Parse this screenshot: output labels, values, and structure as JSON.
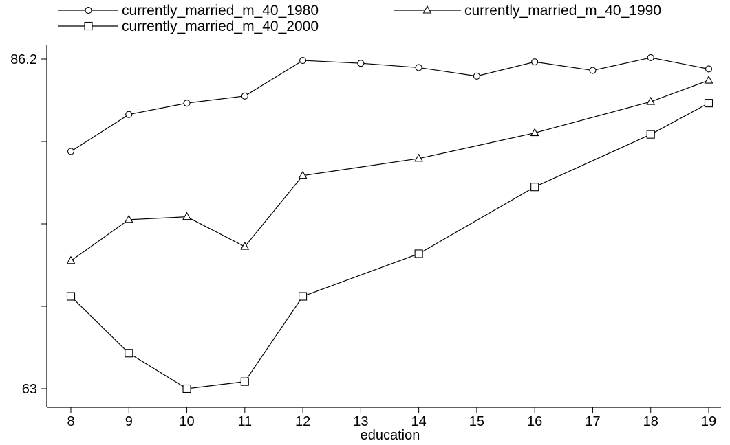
{
  "chart_data": {
    "type": "line",
    "xlabel": "education",
    "ylabel": "",
    "x": [
      8,
      9,
      10,
      11,
      12,
      13,
      14,
      15,
      16,
      17,
      18,
      19
    ],
    "xticks": [
      "8",
      "9",
      "10",
      "11",
      "12",
      "13",
      "14",
      "15",
      "16",
      "17",
      "18",
      "19"
    ],
    "yticks": [
      "63",
      "86.2"
    ],
    "ylim": [
      62.4,
      87.2
    ],
    "grid": false,
    "legend_position": "top",
    "series": [
      {
        "name": "currently_married_m_40_1980",
        "marker": "circle",
        "x": [
          8,
          9,
          10,
          11,
          12,
          13,
          14,
          15,
          16,
          17,
          18,
          19
        ],
        "values": [
          79.7,
          82.3,
          83.1,
          83.6,
          86.1,
          85.9,
          85.6,
          85.0,
          86.0,
          85.4,
          86.3,
          85.5
        ]
      },
      {
        "name": "currently_married_m_40_1990",
        "marker": "triangle",
        "x": [
          8,
          9,
          10,
          11,
          12,
          14,
          16,
          18,
          19
        ],
        "values": [
          72.0,
          74.9,
          75.1,
          73.0,
          78.0,
          79.2,
          81.0,
          83.2,
          84.7
        ]
      },
      {
        "name": "currently_married_m_40_2000",
        "marker": "square",
        "x": [
          8,
          9,
          10,
          11,
          12,
          14,
          16,
          18,
          19
        ],
        "values": [
          69.5,
          65.5,
          63.0,
          63.5,
          69.5,
          72.5,
          77.2,
          80.9,
          83.1
        ]
      }
    ]
  }
}
